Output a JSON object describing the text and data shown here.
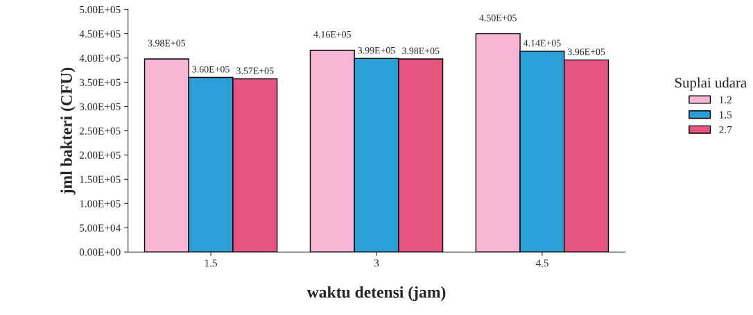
{
  "chart_data": {
    "type": "bar",
    "xlabel": "waktu detensi (jam)",
    "ylabel": "jml bakteri (CFU)",
    "legend_title": "Suplai udara",
    "categories": [
      "1.5",
      "3",
      "4.5"
    ],
    "series": [
      {
        "name": "1.2",
        "color": "#f7b6d6",
        "values": [
          398000,
          416000,
          450000
        ],
        "value_labels": [
          "3.98E+05",
          "4.16E+05",
          "4.50E+05"
        ]
      },
      {
        "name": "1.5",
        "color": "#2a9fd8",
        "values": [
          360000,
          399000,
          414000
        ],
        "value_labels": [
          "3.60E+05",
          "3.99E+05",
          "4.14E+05"
        ]
      },
      {
        "name": "2.7",
        "color": "#e6557f",
        "values": [
          357000,
          398000,
          396000
        ],
        "value_labels": [
          "3.57E+05",
          "3.98E+05",
          "3.96E+05"
        ]
      }
    ],
    "ylim": [
      0,
      500000
    ],
    "yticks": [
      {
        "value": 0,
        "label": "0.00E+00"
      },
      {
        "value": 50000,
        "label": "5.00E+04"
      },
      {
        "value": 100000,
        "label": "1.00E+05"
      },
      {
        "value": 150000,
        "label": "1.50E+05"
      },
      {
        "value": 200000,
        "label": "2.00E+05"
      },
      {
        "value": 250000,
        "label": "2.50E+05"
      },
      {
        "value": 300000,
        "label": "3.00E+05"
      },
      {
        "value": 350000,
        "label": "3.50E+05"
      },
      {
        "value": 400000,
        "label": "4.00E+05"
      },
      {
        "value": 450000,
        "label": "4.50E+05"
      },
      {
        "value": 500000,
        "label": "5.00E+05"
      }
    ],
    "grid": false,
    "legend": "right"
  }
}
